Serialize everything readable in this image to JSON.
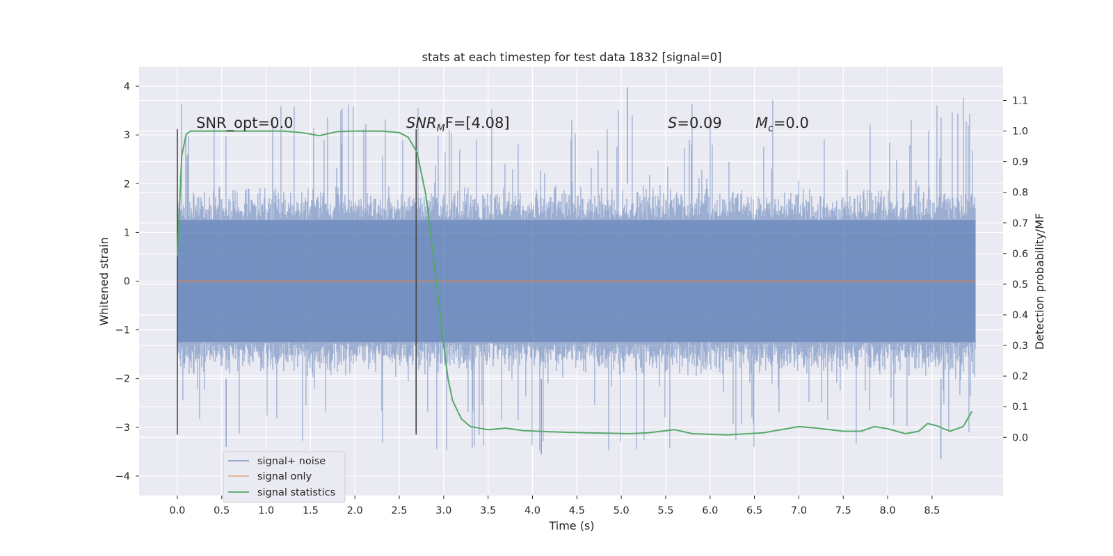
{
  "chart_data": {
    "type": "line",
    "title": "stats at each timestep for test data 1832 [signal=0]",
    "xlabel": "Time (s)",
    "ylabel": "Whitened strain",
    "y2label": "Detection probability/MF",
    "xlim": [
      -0.43,
      9.3
    ],
    "ylim": [
      -4.4,
      4.4
    ],
    "y2lim": [
      -0.19,
      1.21
    ],
    "grid": true,
    "legend_position": "lower-left",
    "x_ticks": [
      "0.0",
      "0.5",
      "1.0",
      "1.5",
      "2.0",
      "2.5",
      "3.0",
      "3.5",
      "4.0",
      "4.5",
      "5.0",
      "5.5",
      "6.0",
      "6.5",
      "7.0",
      "7.5",
      "8.0",
      "8.5"
    ],
    "y_ticks": [
      "4",
      "3",
      "2",
      "1",
      "0",
      "−1",
      "−2",
      "−3",
      "−4"
    ],
    "y2_ticks": [
      "1.1",
      "1.0",
      "0.9",
      "0.8",
      "0.7",
      "0.6",
      "0.5",
      "0.4",
      "0.3",
      "0.2",
      "0.1",
      "0.0"
    ],
    "annotations": {
      "snr_opt": "SNR_opt=0.0",
      "snr_mf_sym": "SNR",
      "snr_mf_sub": "M",
      "snr_mf_rest": "F=[4.08]",
      "s_sym": "S",
      "s_val": "=0.09",
      "mc_sym": "M",
      "mc_sub": "c",
      "mc_val": "=0.0"
    },
    "markers_x": [
      0.0,
      2.69
    ],
    "markers_y_range": [
      -3.15,
      3.12
    ],
    "series": [
      {
        "name": "signal+ noise",
        "kind": "noise-band",
        "color": "#4c72b0",
        "x_range": [
          0.0,
          8.99
        ],
        "dense_band": [
          -1.25,
          1.25
        ],
        "typical_envelope": [
          -2.0,
          2.0
        ],
        "extremes": [
          -3.65,
          3.98
        ]
      },
      {
        "name": "signal only",
        "color": "#dd8452",
        "x": [
          0.0,
          8.99
        ],
        "y": [
          0.0,
          0.0
        ]
      },
      {
        "name": "signal statistics",
        "color": "#55a868",
        "axis": "right",
        "x": [
          0.0,
          0.05,
          0.1,
          0.15,
          0.3,
          0.8,
          1.2,
          1.4,
          1.6,
          1.8,
          2.0,
          2.3,
          2.5,
          2.6,
          2.7,
          2.75,
          2.8,
          2.9,
          3.0,
          3.05,
          3.1,
          3.2,
          3.3,
          3.5,
          3.7,
          3.9,
          4.2,
          4.6,
          5.1,
          5.3,
          5.6,
          5.8,
          6.2,
          6.6,
          7.0,
          7.2,
          7.5,
          7.7,
          7.85,
          8.0,
          8.2,
          8.35,
          8.45,
          8.55,
          8.7,
          8.85,
          8.95
        ],
        "y": [
          0.59,
          0.92,
          0.99,
          1.0,
          1.0,
          1.0,
          1.0,
          0.995,
          0.985,
          0.998,
          1.0,
          1.0,
          0.995,
          0.98,
          0.93,
          0.86,
          0.79,
          0.55,
          0.3,
          0.19,
          0.12,
          0.06,
          0.035,
          0.025,
          0.03,
          0.022,
          0.018,
          0.015,
          0.012,
          0.015,
          0.025,
          0.012,
          0.008,
          0.015,
          0.035,
          0.03,
          0.02,
          0.02,
          0.035,
          0.028,
          0.012,
          0.02,
          0.045,
          0.038,
          0.02,
          0.035,
          0.085
        ]
      }
    ]
  }
}
